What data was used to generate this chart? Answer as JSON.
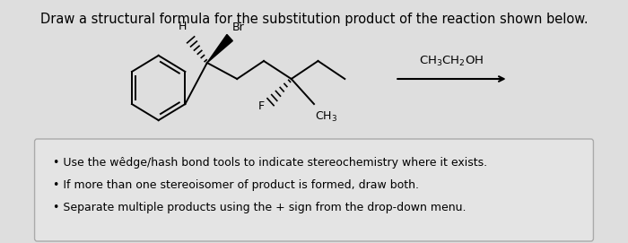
{
  "title": "Draw a structural formula for the substitution product of the reaction shown below.",
  "title_fontsize": 10.5,
  "bg_color": "#dedede",
  "box_bg": "#e4e4e4",
  "box_edge": "#aaaaaa",
  "bullet_points": [
    "Use the wêdge/hash bond tools to indicate stereochemistry where it exists.",
    "If more than one stereoisomer of product is formed, draw both.",
    "Separate multiple products using the + sign from the drop-down menu."
  ],
  "reagent": "CH$_3$CH$_2$OH",
  "mol_scale": 1.0,
  "lw": 1.4
}
